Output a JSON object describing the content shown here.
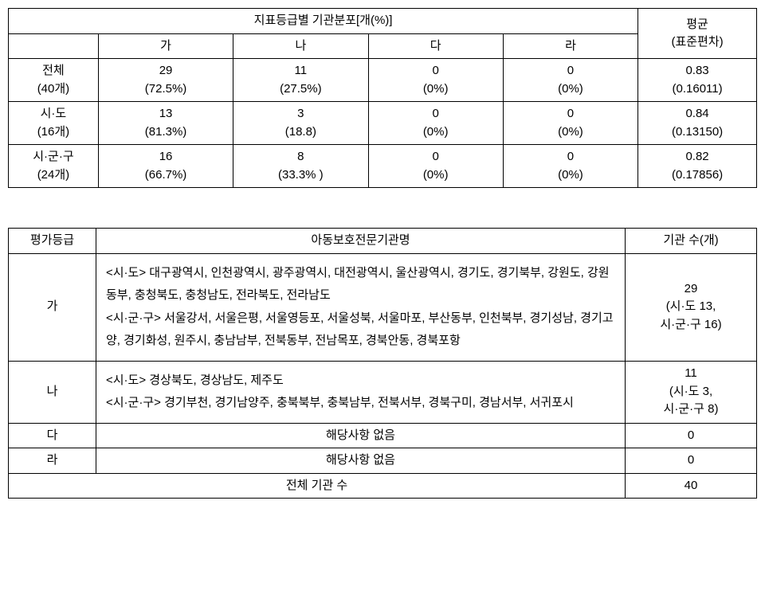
{
  "table1": {
    "header_main": "지표등급별 기관분포[개(%)]",
    "header_avg": "평균",
    "header_std": "(표준편차)",
    "col_headers": [
      "가",
      "나",
      "다",
      "라"
    ],
    "rows": [
      {
        "label1": "전체",
        "label2": "(40개)",
        "c1a": "29",
        "c1b": "(72.5%)",
        "c2a": "11",
        "c2b": "(27.5%)",
        "c3a": "0",
        "c3b": "(0%)",
        "c4a": "0",
        "c4b": "(0%)",
        "avga": "0.83",
        "avgb": "(0.16011)"
      },
      {
        "label1": "시·도",
        "label2": "(16개)",
        "c1a": "13",
        "c1b": "(81.3%)",
        "c2a": "3",
        "c2b": "(18.8)",
        "c3a": "0",
        "c3b": "(0%)",
        "c4a": "0",
        "c4b": "(0%)",
        "avga": "0.84",
        "avgb": "(0.13150)"
      },
      {
        "label1": "시·군·구",
        "label2": "(24개)",
        "c1a": "16",
        "c1b": "(66.7%)",
        "c2a": "8",
        "c2b": "(33.3% )",
        "c3a": "0",
        "c3b": "(0%)",
        "c4a": "0",
        "c4b": "(0%)",
        "avga": "0.82",
        "avgb": "(0.17856)"
      }
    ]
  },
  "table2": {
    "header1": "평가등급",
    "header2": "아동보호전문기관명",
    "header3": "기관 수(개)",
    "rows": [
      {
        "grade": "가",
        "desc": "<시·도> 대구광역시, 인천광역시, 광주광역시, 대전광역시, 울산광역시, 경기도, 경기북부, 강원도, 강원동부, 충청북도, 충청남도, 전라북도, 전라남도\n<시·군·구> 서울강서, 서울은평, 서울영등포, 서울성북, 서울마포, 부산동부, 인천북부, 경기성남, 경기고양, 경기화성, 원주시, 충남남부, 전북동부, 전남목포, 경북안동, 경북포항",
        "count": "29\n(시·도 13,\n시·군·구 16)"
      },
      {
        "grade": "나",
        "desc": "<시·도> 경상북도, 경상남도, 제주도\n<시·군·구> 경기부천, 경기남양주, 충북북부, 충북남부, 전북서부, 경북구미, 경남서부, 서귀포시",
        "count": "11\n(시·도 3,\n시·군·구 8)"
      },
      {
        "grade": "다",
        "desc_center": "해당사항 없음",
        "count": "0"
      },
      {
        "grade": "라",
        "desc_center": "해당사항 없음",
        "count": "0"
      }
    ],
    "total_label": "전체 기관 수",
    "total_value": "40"
  }
}
